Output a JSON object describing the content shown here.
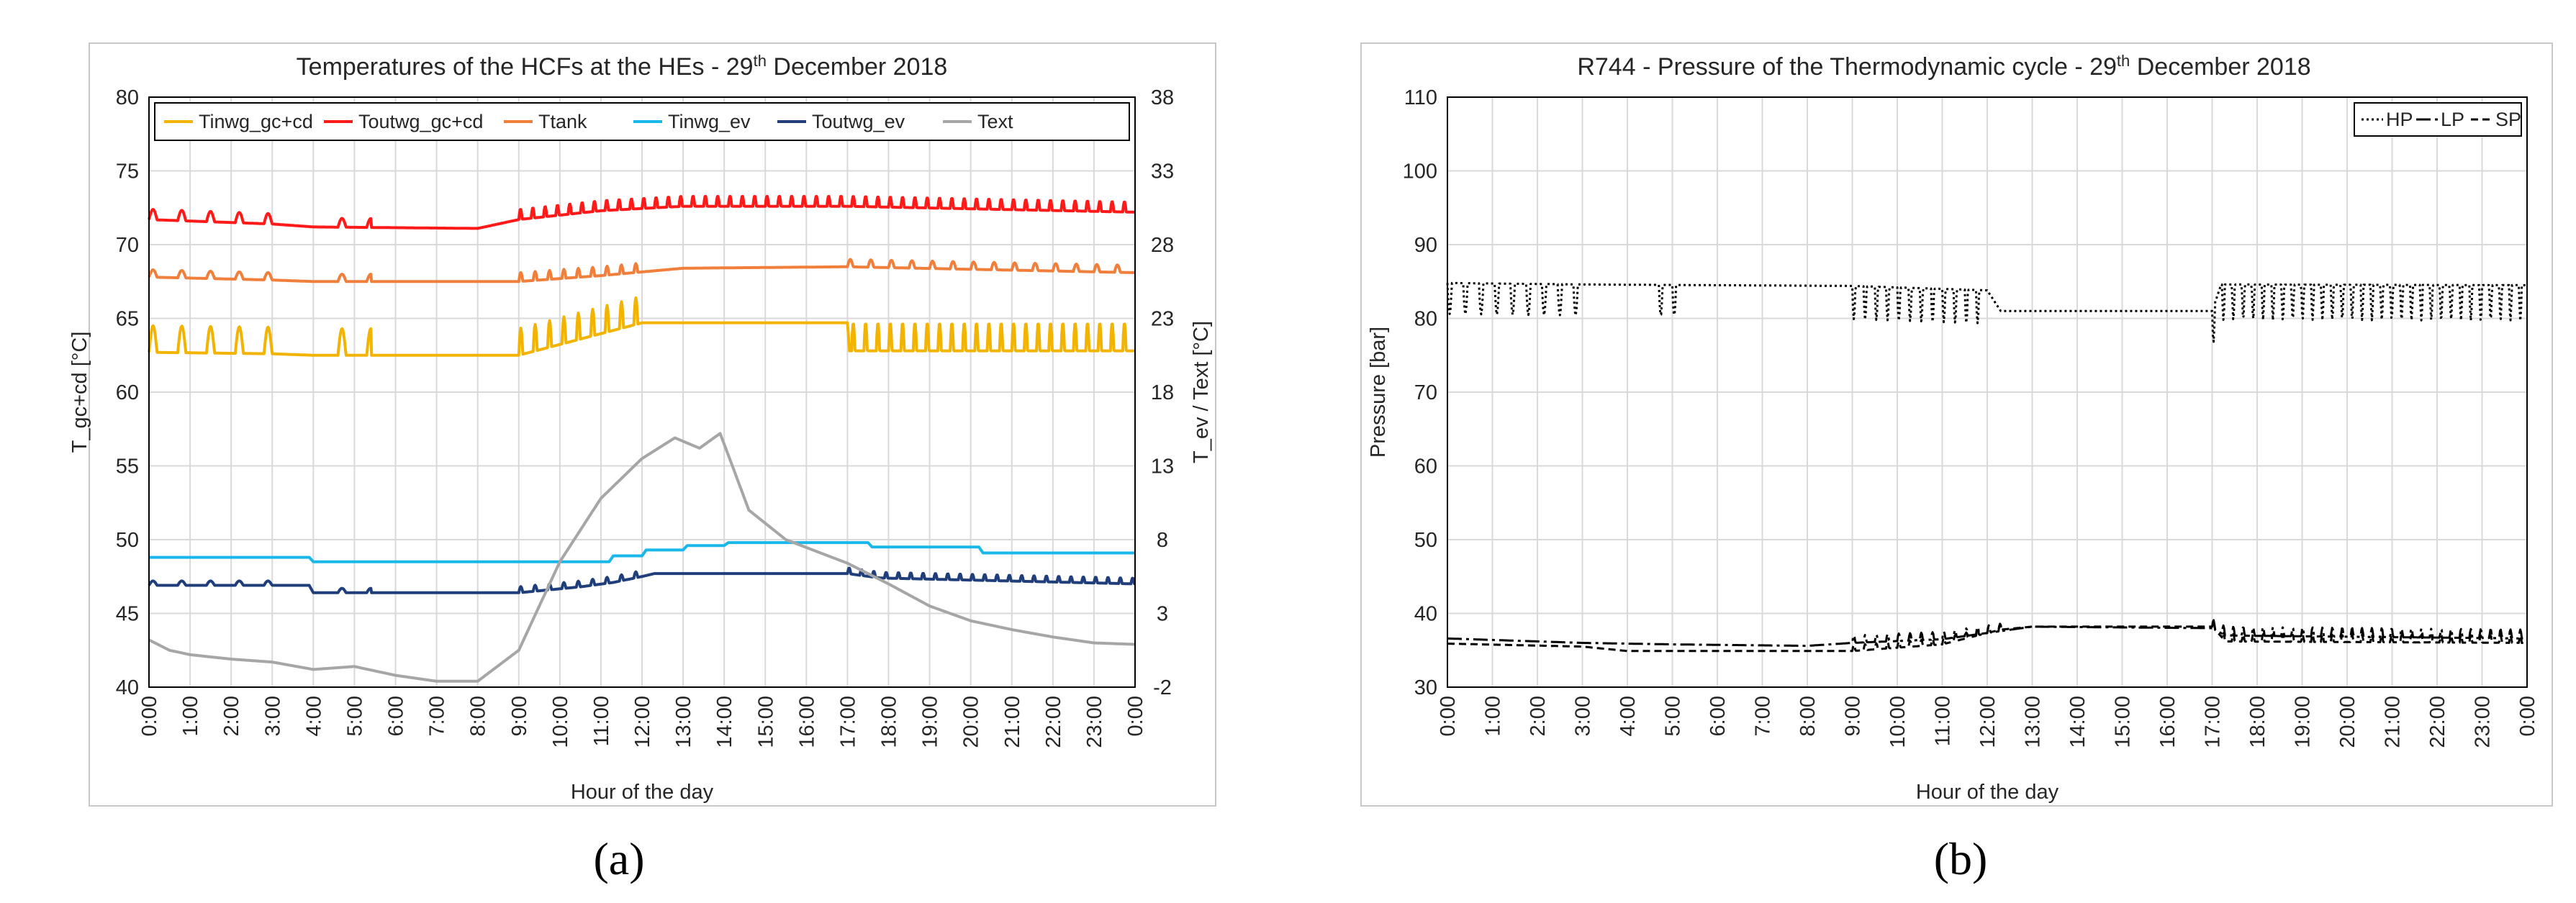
{
  "panel_labels": [
    "(a)",
    "(b)"
  ],
  "chart_data": [
    {
      "type": "line",
      "title": "Temperatures of the HCFs at the HEs - 29",
      "title_sup": "th",
      "title_tail": " December 2018",
      "xlabel": "Hour of the day",
      "ylabel": "T_gc+cd [°C]",
      "y2label": "T_ev / Text  [°C]",
      "ylim": [
        40,
        80
      ],
      "y2lim": [
        -2,
        38
      ],
      "yticks": [
        "40",
        "45",
        "50",
        "55",
        "60",
        "65",
        "70",
        "75",
        "80"
      ],
      "y2ticks": [
        "-2",
        "3",
        "8",
        "13",
        "18",
        "23",
        "28",
        "33",
        "38"
      ],
      "xticks": [
        "0:00",
        "1:00",
        "2:00",
        "3:00",
        "4:00",
        "5:00",
        "6:00",
        "7:00",
        "8:00",
        "9:00",
        "10:00",
        "11:00",
        "12:00",
        "13:00",
        "14:00",
        "15:00",
        "16:00",
        "17:00",
        "18:00",
        "19:00",
        "20:00",
        "21:00",
        "22:00",
        "23:00",
        "0:00"
      ],
      "legend_position": "top",
      "series": [
        {
          "name": "Tinwg_gc+cd",
          "color": "#f2b400",
          "axis": "left",
          "base": [
            [
              0,
              62.7
            ],
            [
              3,
              62.6
            ],
            [
              4,
              62.5
            ],
            [
              9,
              62.5
            ],
            [
              12,
              64.7
            ],
            [
              17,
              64.7
            ],
            [
              17.05,
              62.8
            ],
            [
              24,
              62.8
            ]
          ],
          "spikes": [
            {
              "from": 0,
              "to": 3,
              "step": 0.7,
              "amp": 1.8
            },
            {
              "from": 4.6,
              "to": 5.4,
              "step": 0.7,
              "amp": 1.8
            },
            {
              "from": 9,
              "to": 12,
              "step": 0.35,
              "amp": 1.8
            },
            {
              "from": 17.1,
              "to": 24,
              "step": 0.3,
              "amp": 1.9
            }
          ]
        },
        {
          "name": "Toutwg_gc+cd",
          "color": "#ff1a1a",
          "axis": "left",
          "base": [
            [
              0,
              71.7
            ],
            [
              3,
              71.4
            ],
            [
              4,
              71.2
            ],
            [
              8,
              71.1
            ],
            [
              9,
              71.7
            ],
            [
              11,
              72.3
            ],
            [
              13,
              72.6
            ],
            [
              17,
              72.6
            ],
            [
              24,
              72.2
            ]
          ],
          "spikes": [
            {
              "from": 0,
              "to": 3,
              "step": 0.7,
              "amp": 0.7
            },
            {
              "from": 4.6,
              "to": 5.4,
              "step": 0.7,
              "amp": 0.6
            },
            {
              "from": 9,
              "to": 24,
              "step": 0.3,
              "amp": 0.7
            }
          ]
        },
        {
          "name": "Ttank",
          "color": "#f07f3c",
          "axis": "left",
          "base": [
            [
              0,
              67.8
            ],
            [
              3,
              67.6
            ],
            [
              4,
              67.5
            ],
            [
              9,
              67.5
            ],
            [
              11,
              67.9
            ],
            [
              13,
              68.4
            ],
            [
              17,
              68.5
            ],
            [
              24,
              68.1
            ]
          ],
          "spikes": [
            {
              "from": 0,
              "to": 3,
              "step": 0.7,
              "amp": 0.5
            },
            {
              "from": 4.6,
              "to": 5.4,
              "step": 0.7,
              "amp": 0.5
            },
            {
              "from": 9,
              "to": 12,
              "step": 0.35,
              "amp": 0.6
            },
            {
              "from": 17,
              "to": 24,
              "step": 0.5,
              "amp": 0.5
            }
          ]
        },
        {
          "name": "Tinwg_ev",
          "color": "#1ab7ea",
          "axis": "right",
          "base": [
            [
              0,
              6.8
            ],
            [
              3.9,
              6.8
            ],
            [
              4,
              6.5
            ],
            [
              11.2,
              6.5
            ],
            [
              11.3,
              6.9
            ],
            [
              12,
              6.9
            ],
            [
              12.1,
              7.3
            ],
            [
              13,
              7.3
            ],
            [
              13.1,
              7.6
            ],
            [
              14,
              7.6
            ],
            [
              14.1,
              7.8
            ],
            [
              17.5,
              7.8
            ],
            [
              17.6,
              7.5
            ],
            [
              20.2,
              7.5
            ],
            [
              20.3,
              7.1
            ],
            [
              24,
              7.1
            ]
          ],
          "spikes": []
        },
        {
          "name": "Toutwg_ev",
          "color": "#1f3e7a",
          "axis": "right",
          "base": [
            [
              0,
              4.9
            ],
            [
              3.9,
              4.9
            ],
            [
              4,
              4.4
            ],
            [
              9,
              4.4
            ],
            [
              10.5,
              4.8
            ],
            [
              11.3,
              5.1
            ],
            [
              12,
              5.5
            ],
            [
              12.3,
              5.7
            ],
            [
              17,
              5.7
            ],
            [
              17.8,
              5.4
            ],
            [
              24,
              5.0
            ]
          ],
          "spikes": [
            {
              "from": 0,
              "to": 3,
              "step": 0.7,
              "amp": 0.3
            },
            {
              "from": 4.6,
              "to": 5.4,
              "step": 0.7,
              "amp": 0.3
            },
            {
              "from": 9,
              "to": 12,
              "step": 0.35,
              "amp": 0.4
            },
            {
              "from": 17,
              "to": 24,
              "step": 0.3,
              "amp": 0.4
            }
          ]
        },
        {
          "name": "Text",
          "color": "#a6a6a6",
          "axis": "right",
          "base": [
            [
              0,
              1.2
            ],
            [
              0.5,
              0.5
            ],
            [
              1,
              0.2
            ],
            [
              2,
              -0.1
            ],
            [
              3,
              -0.3
            ],
            [
              4,
              -0.8
            ],
            [
              5,
              -0.6
            ],
            [
              6,
              -1.2
            ],
            [
              7,
              -1.6
            ],
            [
              8,
              -1.6
            ],
            [
              9,
              0.5
            ],
            [
              10,
              6.5
            ],
            [
              11,
              10.8
            ],
            [
              12,
              13.5
            ],
            [
              12.8,
              14.9
            ],
            [
              13.4,
              14.2
            ],
            [
              13.9,
              15.2
            ],
            [
              14.2,
              13.0
            ],
            [
              14.6,
              10.0
            ],
            [
              15.5,
              8.0
            ],
            [
              17,
              6.4
            ],
            [
              18,
              5.0
            ],
            [
              19,
              3.5
            ],
            [
              20,
              2.5
            ],
            [
              21,
              1.9
            ],
            [
              22,
              1.4
            ],
            [
              23,
              1.0
            ],
            [
              24,
              0.9
            ]
          ],
          "spikes": []
        }
      ]
    },
    {
      "type": "line",
      "title": "R744 - Pressure of the Thermodynamic cycle - 29",
      "title_sup": "th",
      "title_tail": " December 2018",
      "xlabel": "Hour of the day",
      "ylabel": "Pressure [bar]",
      "ylim": [
        30,
        110
      ],
      "yticks": [
        "30",
        "40",
        "50",
        "60",
        "70",
        "80",
        "90",
        "100",
        "110"
      ],
      "xticks": [
        "0:00",
        "1:00",
        "2:00",
        "3:00",
        "4:00",
        "5:00",
        "6:00",
        "7:00",
        "8:00",
        "9:00",
        "10:00",
        "11:00",
        "12:00",
        "13:00",
        "14:00",
        "15:00",
        "16:00",
        "17:00",
        "18:00",
        "19:00",
        "20:00",
        "21:00",
        "22:00",
        "23:00",
        "0:00"
      ],
      "legend_position": "top-right",
      "series": [
        {
          "name": "HP",
          "color": "#000000",
          "dash": "3,4",
          "axis": "left",
          "base": [
            [
              0,
              84.8
            ],
            [
              3,
              84.6
            ],
            [
              9,
              84.4
            ],
            [
              12,
              83.8
            ],
            [
              12.3,
              81.0
            ],
            [
              17,
              81.0
            ],
            [
              17.2,
              84.6
            ],
            [
              24,
              84.5
            ]
          ],
          "spikes": [
            {
              "from": 0,
              "to": 3,
              "step": 0.35,
              "amp": -4.2
            },
            {
              "from": 4.7,
              "to": 5.3,
              "step": 0.3,
              "amp": -4.2
            },
            {
              "from": 9,
              "to": 12,
              "step": 0.25,
              "amp": -4.5
            },
            {
              "from": 17,
              "to": 24,
              "step": 0.22,
              "amp": -4.8
            }
          ]
        },
        {
          "name": "LP",
          "color": "#000000",
          "dash": "20,6,4,6",
          "axis": "left",
          "base": [
            [
              0,
              36.6
            ],
            [
              3,
              36.0
            ],
            [
              5,
              35.8
            ],
            [
              8,
              35.6
            ],
            [
              9,
              36.0
            ],
            [
              11,
              36.5
            ],
            [
              12.3,
              37.6
            ],
            [
              13,
              38.2
            ],
            [
              17,
              38.0
            ],
            [
              17.3,
              37.0
            ],
            [
              24,
              36.6
            ]
          ],
          "spikes": [
            {
              "from": 9,
              "to": 12.3,
              "step": 0.25,
              "amp": 1.0
            },
            {
              "from": 17,
              "to": 24,
              "step": 0.22,
              "amp": 1.2
            }
          ]
        },
        {
          "name": "SP",
          "color": "#000000",
          "dash": "10,6",
          "axis": "left",
          "base": [
            [
              0,
              35.9
            ],
            [
              3,
              35.5
            ],
            [
              4,
              34.9
            ],
            [
              9,
              34.9
            ],
            [
              11,
              35.8
            ],
            [
              12.3,
              37.8
            ],
            [
              13,
              38.2
            ],
            [
              17,
              38.2
            ],
            [
              17.3,
              36.2
            ],
            [
              24,
              36.0
            ]
          ],
          "spikes": [
            {
              "from": 9,
              "to": 12.3,
              "step": 0.25,
              "amp": 0.8
            },
            {
              "from": 17,
              "to": 24,
              "step": 0.22,
              "amp": 1.0
            }
          ]
        }
      ]
    }
  ]
}
